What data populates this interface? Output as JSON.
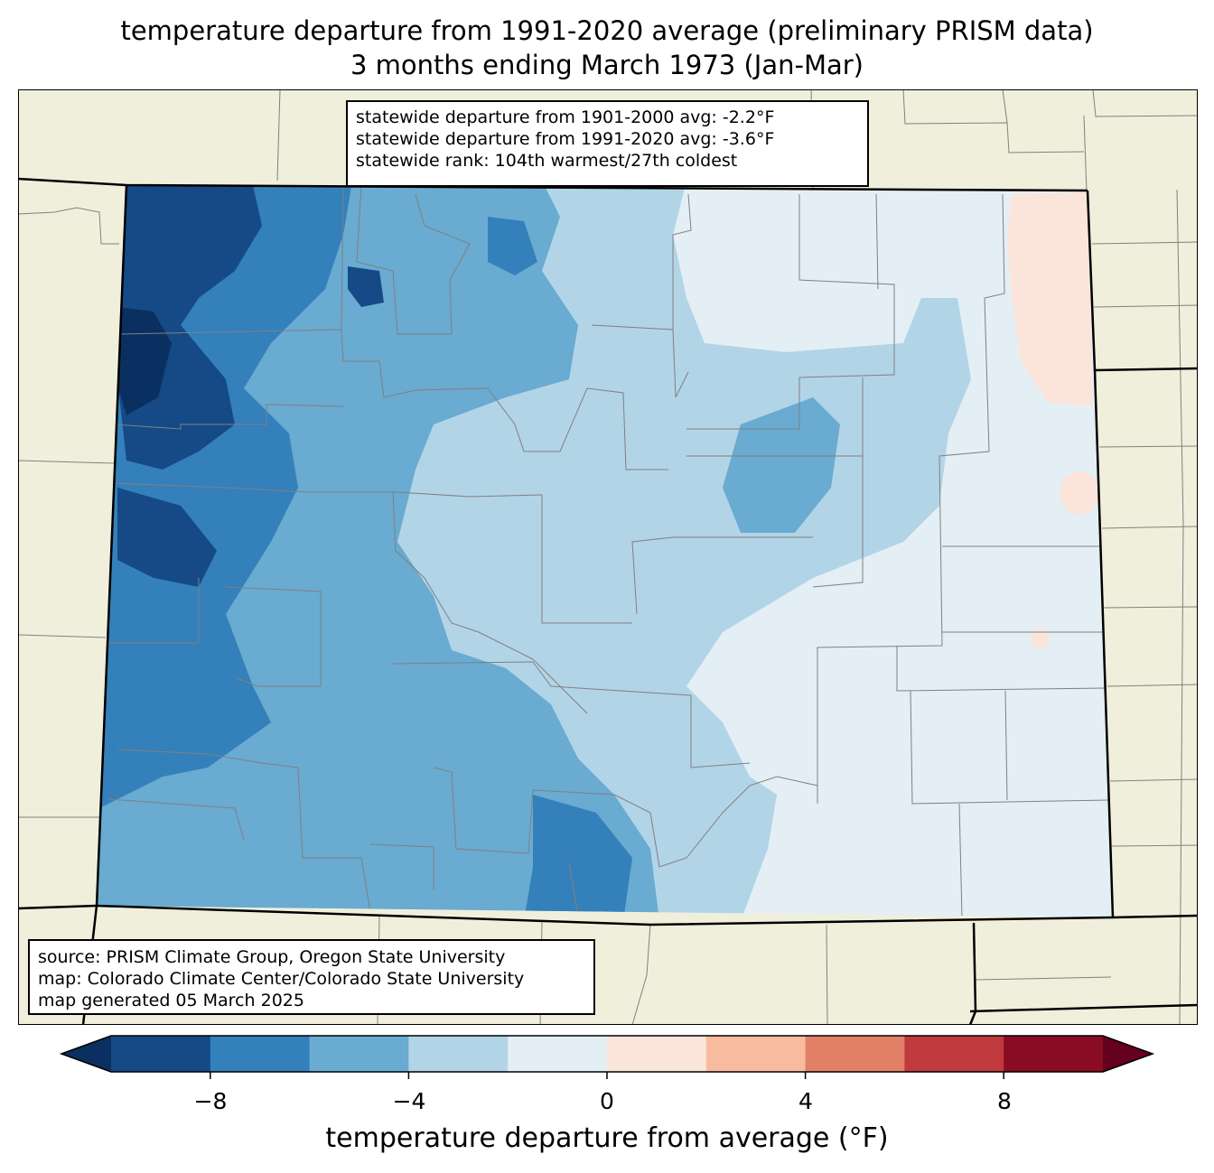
{
  "title": {
    "line1": "temperature departure from 1991-2020 average (preliminary PRISM data)",
    "line2": "3 months ending March 1973 (Jan-Mar)"
  },
  "stats": {
    "line1": "statewide departure from 1901-2000 avg: -2.2°F",
    "line2": "statewide departure from 1991-2020 avg: -3.6°F",
    "line3": "statewide rank: 104th warmest/27th coldest"
  },
  "source": {
    "line1": "source: PRISM Climate Group, Oregon State University",
    "line2": "map: Colorado Climate Center/Colorado State University",
    "line3": "map generated 05 March 2025"
  },
  "colorbar": {
    "label": "temperature departure from average (°F)",
    "ticks": [
      "−8",
      "−4",
      "0",
      "4",
      "8"
    ],
    "bins": [
      -10,
      -8,
      -6,
      -4,
      -2,
      0,
      2,
      4,
      6,
      8,
      10
    ],
    "colors": [
      "#154a87",
      "#3380bb",
      "#69abd1",
      "#b2d4e7",
      "#e4eef5",
      "#fbe5da",
      "#f8bba0",
      "#e28067",
      "#c0393d",
      "#8a0b24"
    ],
    "under_color": "#0a3061",
    "over_color": "#66001f"
  },
  "map_colors": {
    "land": "#f0efdc",
    "state_border": "#000000",
    "county_border": "#808080"
  }
}
